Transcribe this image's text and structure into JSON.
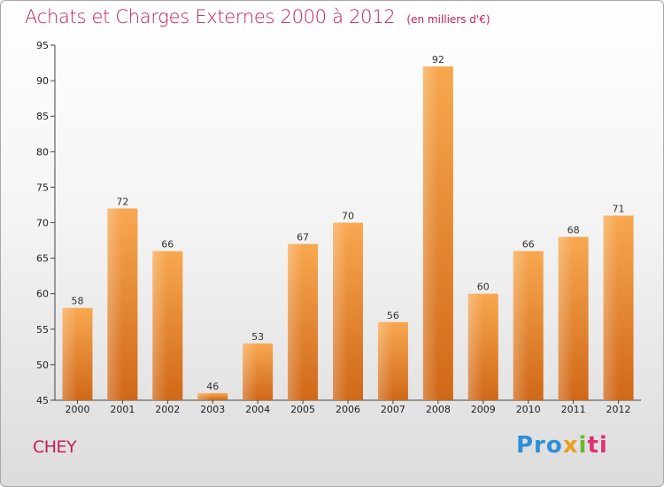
{
  "title": "Achats et Charges Externes 2000 à 2012",
  "unit_note": "(en milliers d'€)",
  "commune": "CHEY",
  "logo": {
    "p1": "Pro",
    "p2": "x",
    "p3": "i",
    "p4": "ti"
  },
  "colors": {
    "bar_top": "#f8a850",
    "bar_bottom": "#d06818",
    "title": "#c41e5a"
  },
  "chart_data": {
    "type": "bar",
    "categories": [
      "2000",
      "2001",
      "2002",
      "2003",
      "2004",
      "2005",
      "2006",
      "2007",
      "2008",
      "2009",
      "2010",
      "2011",
      "2012"
    ],
    "values": [
      58,
      72,
      66,
      46,
      53,
      67,
      70,
      56,
      92,
      60,
      66,
      68,
      71
    ],
    "ylim": [
      45,
      95
    ],
    "yticks": [
      45,
      50,
      55,
      60,
      65,
      70,
      75,
      80,
      85,
      90,
      95
    ],
    "grid": false,
    "legend": "none"
  }
}
